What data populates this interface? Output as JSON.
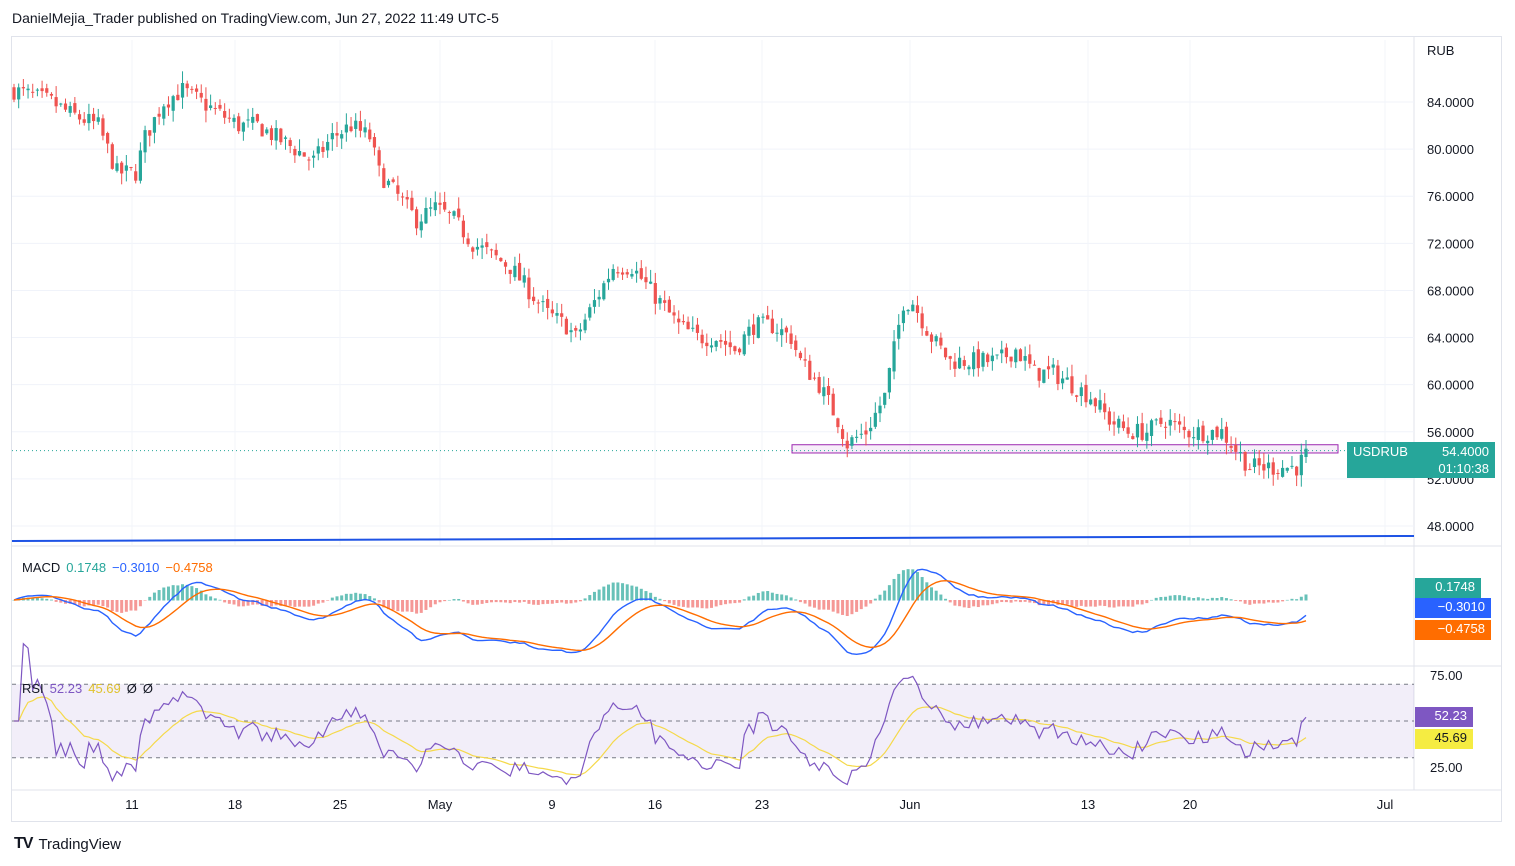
{
  "header": {
    "published_line": "DanielMejia_Trader published on TradingView.com, Jun 27, 2022 11:49 UTC-5"
  },
  "footer": {
    "brand": "TradingView"
  },
  "colors": {
    "up": "#26a69a",
    "down": "#ef5350",
    "macd": "#2962ff",
    "signal": "#ff6d00",
    "rsi": "#7e57c2",
    "rsi_ma": "#f5d94a",
    "zone": "#9c27b0"
  },
  "price_axis": {
    "currency": "RUB",
    "ticks": [
      "84.0000",
      "80.0000",
      "76.0000",
      "72.0000",
      "68.0000",
      "64.0000",
      "60.0000",
      "56.0000",
      "52.0000",
      "48.0000"
    ]
  },
  "last_price": {
    "symbol": "USDRUB",
    "price": "54.4000",
    "countdown": "01:10:38"
  },
  "macd": {
    "label": "MACD",
    "hist": "0.1748",
    "macd": "−0.3010",
    "signal": "−0.4758"
  },
  "rsi": {
    "label": "RSI",
    "value": "52.23",
    "ma": "45.69",
    "extra1": "Ø",
    "extra2": "Ø",
    "ticks": [
      "75.00",
      "25.00"
    ]
  },
  "time_axis": [
    "11",
    "18",
    "25",
    "May",
    "9",
    "16",
    "23",
    "Jun",
    "13",
    "20",
    "Jul"
  ],
  "chart_data": {
    "type": "candlestick",
    "symbol": "USDRUB",
    "ylim": [
      46,
      88
    ],
    "close_series": [
      [
        0,
        85
      ],
      [
        8,
        84
      ],
      [
        12,
        83
      ],
      [
        18,
        82
      ],
      [
        22,
        78
      ],
      [
        26,
        78
      ],
      [
        28,
        81
      ],
      [
        32,
        84
      ],
      [
        36,
        85
      ],
      [
        40,
        84
      ],
      [
        44,
        83
      ],
      [
        48,
        82
      ],
      [
        52,
        82
      ],
      [
        56,
        81
      ],
      [
        60,
        80
      ],
      [
        64,
        79
      ],
      [
        68,
        81
      ],
      [
        72,
        82
      ],
      [
        76,
        81
      ],
      [
        78,
        78
      ],
      [
        82,
        76
      ],
      [
        86,
        74
      ],
      [
        90,
        75
      ],
      [
        94,
        74
      ],
      [
        98,
        72
      ],
      [
        102,
        71
      ],
      [
        106,
        70
      ],
      [
        110,
        68
      ],
      [
        114,
        66
      ],
      [
        118,
        65
      ],
      [
        120,
        64
      ],
      [
        124,
        67
      ],
      [
        128,
        70
      ],
      [
        132,
        70
      ],
      [
        134,
        69
      ],
      [
        138,
        67
      ],
      [
        142,
        65
      ],
      [
        146,
        64
      ],
      [
        150,
        64
      ],
      [
        154,
        63
      ],
      [
        158,
        65
      ],
      [
        162,
        65
      ],
      [
        166,
        64
      ],
      [
        168,
        62
      ],
      [
        172,
        60
      ],
      [
        176,
        57
      ],
      [
        178,
        55
      ],
      [
        182,
        56
      ],
      [
        186,
        59
      ],
      [
        188,
        63
      ],
      [
        190,
        67
      ],
      [
        192,
        67
      ],
      [
        196,
        64
      ],
      [
        200,
        62
      ],
      [
        204,
        62
      ],
      [
        206,
        62
      ],
      [
        210,
        62
      ],
      [
        214,
        63
      ],
      [
        218,
        61
      ],
      [
        222,
        61
      ],
      [
        226,
        60
      ],
      [
        230,
        59
      ],
      [
        234,
        57
      ],
      [
        238,
        56
      ],
      [
        242,
        56
      ],
      [
        246,
        57
      ],
      [
        250,
        56
      ],
      [
        254,
        56
      ],
      [
        258,
        56
      ],
      [
        262,
        54
      ],
      [
        264,
        53
      ],
      [
        266,
        53
      ],
      [
        270,
        53
      ],
      [
        274,
        53
      ],
      [
        276,
        54
      ]
    ],
    "support_zone": [
      54.2,
      54.9
    ],
    "macd": {
      "hist": 0.1748,
      "macd": -0.301,
      "signal": -0.4758
    },
    "rsi": {
      "value": 52.23,
      "ma": 45.69,
      "upper": 70,
      "lower": 30
    }
  }
}
